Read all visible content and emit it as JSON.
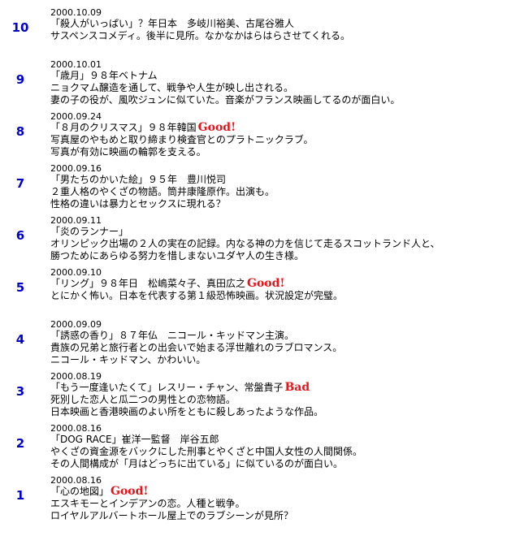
{
  "entries": [
    {
      "rank": "10",
      "date": "2000.10.09",
      "title": "「殺人がいっぱい」？年日本　多岐川裕美、古尾谷雅人",
      "rating": "",
      "lines": [
        "サスペンスコメディ。後半に見所。なかなかはらはらさせてくれる。"
      ]
    },
    {
      "rank": "9",
      "date": "2000.10.01",
      "title": "「歳月」９８年ベトナム",
      "rating": "",
      "lines": [
        "ニョクマム醸造を通して、戦争や人生が映し出される。",
        "妻の子の役が、風吹ジュンに似ていた。音楽がフランス映画してるのが面白い。"
      ]
    },
    {
      "rank": "8",
      "date": "2000.09.24",
      "title": "「８月のクリスマス」９８年韓国",
      "rating": "Good!",
      "lines": [
        "写真屋のやもめと取り締まり検査官とのプラトニックラブ。",
        "写真が有効に映画の輪郭を支える。"
      ]
    },
    {
      "rank": "7",
      "date": "2000.09.16",
      "title": "「男たちのかいた絵」９５年　豊川悦司",
      "rating": "",
      "lines": [
        "２重人格のやくざの物語。筒井康隆原作。出演も。",
        "性格の違いは暴力とセックスに現れる？"
      ]
    },
    {
      "rank": "6",
      "date": "2000.09.11",
      "title": "「炎のランナー」",
      "rating": "",
      "lines": [
        "オリンピック出場の２人の実在の記録。内なる神の力を信じて走るスコットランド人と、",
        "勝つためにあらゆる努力を惜しまないユダヤ人の生き様。"
      ]
    },
    {
      "rank": "5",
      "date": "2000.09.10",
      "title": "「リング」９８年日　松嶋菜々子、真田広之",
      "rating": "Good!",
      "lines": [
        "とにかく怖い。日本を代表する第１級恐怖映画。状況設定が完璧。"
      ]
    },
    {
      "rank": "4",
      "date": "2000.09.09",
      "title": "「誘惑の香り」８７年仏　ニコール・キッドマン主演。",
      "rating": "",
      "lines": [
        "貴族の兄弟と旅行者との出会いで始まる浮世離れのラブロマンス。",
        "ニコール・キッドマン、かわいい。"
      ]
    },
    {
      "rank": "3",
      "date": "2000.08.19",
      "title": "「もう一度逢いたくて」レスリー・チャン、常盤貴子",
      "rating": "Bad",
      "lines": [
        "死別した恋人と瓜二つの男性との恋物語。",
        "日本映画と香港映画のよい所をともに殺しあったような作品。"
      ]
    },
    {
      "rank": "2",
      "date": "2000.08.16",
      "title": "「DOG RACE」崔洋一監督　岸谷五郎",
      "rating": "",
      "lines": [
        "やくざの資金源をバックにした刑事とやくざと中国人女性の人間関係。",
        "その人間構成が「月はどっちに出ている」に似ているのが面白い。"
      ]
    },
    {
      "rank": "1",
      "date": "2000.08.16",
      "title": "「心の地図」",
      "rating": "Good!",
      "lines": [
        "エスキモーとインデアンの恋。人種と戦争。",
        "ロイヤルアルバートホール屋上でのラブシーンが見所？"
      ]
    }
  ]
}
